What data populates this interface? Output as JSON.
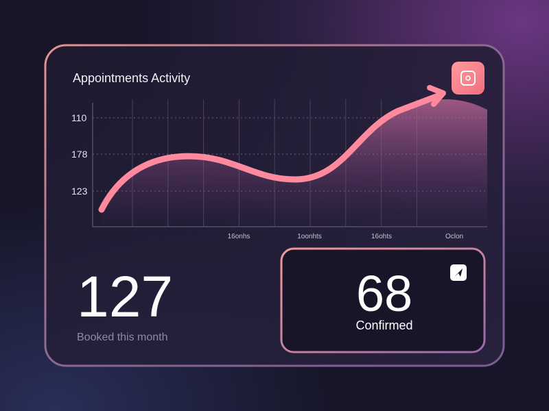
{
  "header": {
    "title": "Appointments Activity"
  },
  "chart": {
    "y_labels": [
      "110",
      "178",
      "123"
    ],
    "x_labels": [
      "16onhs",
      "1oonhts",
      "16ohts",
      "Oclon"
    ]
  },
  "stats": {
    "booked": {
      "value": 127,
      "label": "Booked this month"
    },
    "confirmed": {
      "value": 68,
      "label": "Confirmed"
    }
  }
}
